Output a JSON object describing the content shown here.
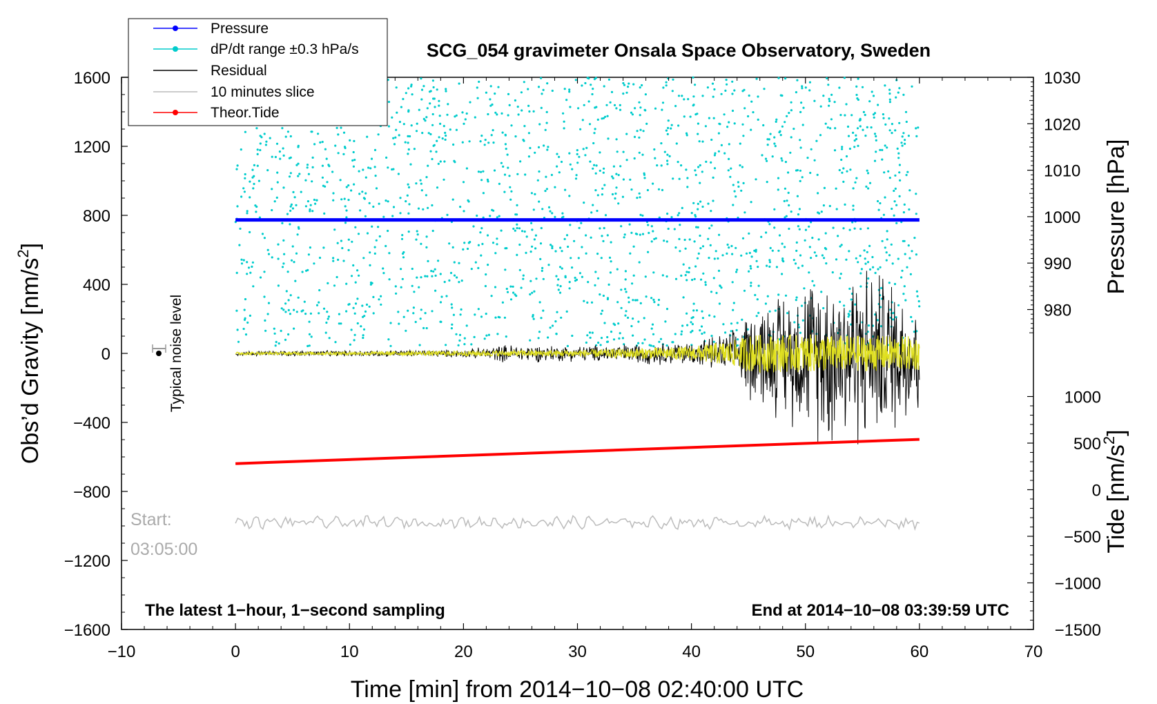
{
  "chart_data": {
    "type": "line",
    "title": "SCG_054 gravimeter Onsala Space Observatory, Sweden",
    "xlabel": "Time [min] from 2014−10−08 02:40:00 UTC",
    "ylabel_left": "Obs’d Gravity [nm/s²]",
    "ylabel_left_main": "Obs’d Gravity [nm/s",
    "ylabel_right_pressure": "Pressure [hPa]",
    "ylabel_right_tide_main": "Tide [nm/s",
    "unit_exp": "2",
    "unit_close": "]",
    "xlim": [
      -10,
      70
    ],
    "ylim": [
      -1600,
      1600
    ],
    "pressure_lim": [
      970,
      1030
    ],
    "tide_lim": [
      -1500,
      1000
    ],
    "x_ticks": [
      -10,
      0,
      10,
      20,
      30,
      40,
      50,
      60,
      70
    ],
    "x_tick_labels": [
      "−10",
      "0",
      "10",
      "20",
      "30",
      "40",
      "50",
      "60",
      "70"
    ],
    "y_ticks": [
      -1600,
      -1200,
      -800,
      -400,
      0,
      400,
      800,
      1200,
      1600
    ],
    "y_tick_labels": [
      "−1600",
      "−1200",
      "−800",
      "−400",
      "0",
      "400",
      "800",
      "1200",
      "1600"
    ],
    "pressure_ticks": [
      980,
      990,
      1000,
      1010,
      1020,
      1030
    ],
    "pressure_tick_labels": [
      "980",
      "990",
      "1000",
      "1010",
      "1020",
      "1030"
    ],
    "tide_ticks": [
      -1500,
      -1000,
      -500,
      0,
      500,
      1000
    ],
    "tide_tick_labels": [
      "−1500",
      "−1000",
      "−500",
      "0",
      "500",
      "1000"
    ],
    "legend": [
      {
        "label": "Pressure",
        "color": "#0000ff",
        "marker": true
      },
      {
        "label": "dP/dt range ±0.3 hPa/s",
        "color": "#00cccc",
        "marker": true
      },
      {
        "label": "Residual",
        "color": "#000000",
        "marker": false
      },
      {
        "label": "10 minutes slice",
        "color": "#bbbbbb",
        "marker": false
      },
      {
        "label": "Theor.Tide",
        "color": "#ff0000",
        "marker": true
      }
    ],
    "series": [
      {
        "name": "Pressure",
        "axis": "pressure",
        "color": "#0000ff",
        "x": [
          0,
          60
        ],
        "values": [
          999.3,
          999.3
        ]
      },
      {
        "name": "Theor.Tide",
        "axis": "tide",
        "color": "#ff0000",
        "x": [
          0,
          60
        ],
        "values": [
          280,
          540
        ]
      },
      {
        "name": "Residual",
        "axis": "gravity",
        "color": "#000000",
        "envelope_x": [
          0,
          10,
          20,
          24,
          30,
          40,
          44,
          45,
          50,
          52,
          55,
          60
        ],
        "envelope_amp": [
          15,
          20,
          25,
          60,
          50,
          80,
          150,
          300,
          500,
          600,
          600,
          450
        ]
      },
      {
        "name": "Filtered residual",
        "axis": "gravity",
        "color": "#e0e020",
        "envelope_x": [
          0,
          10,
          20,
          30,
          40,
          44,
          45,
          50,
          60
        ],
        "envelope_amp": [
          8,
          10,
          15,
          20,
          40,
          80,
          110,
          110,
          100
        ]
      },
      {
        "name": "dP/dt range",
        "axis": "gravity",
        "color": "#00cccc",
        "y_range": [
          0,
          1600
        ]
      },
      {
        "name": "10 minutes slice",
        "axis": "gravity",
        "color": "#bbbbbb",
        "x": [
          0,
          60
        ],
        "center": -980,
        "amp": 40
      }
    ],
    "noise_level": {
      "x": -7,
      "y": 0,
      "err": 15,
      "label": "Typical noise level"
    },
    "annotations": {
      "start_label": "Start:",
      "start_time": "03:05:00",
      "bottom_left": "The latest 1−hour, 1−second sampling",
      "bottom_right": "End at 2014−10−08 03:39:59 UTC"
    }
  }
}
